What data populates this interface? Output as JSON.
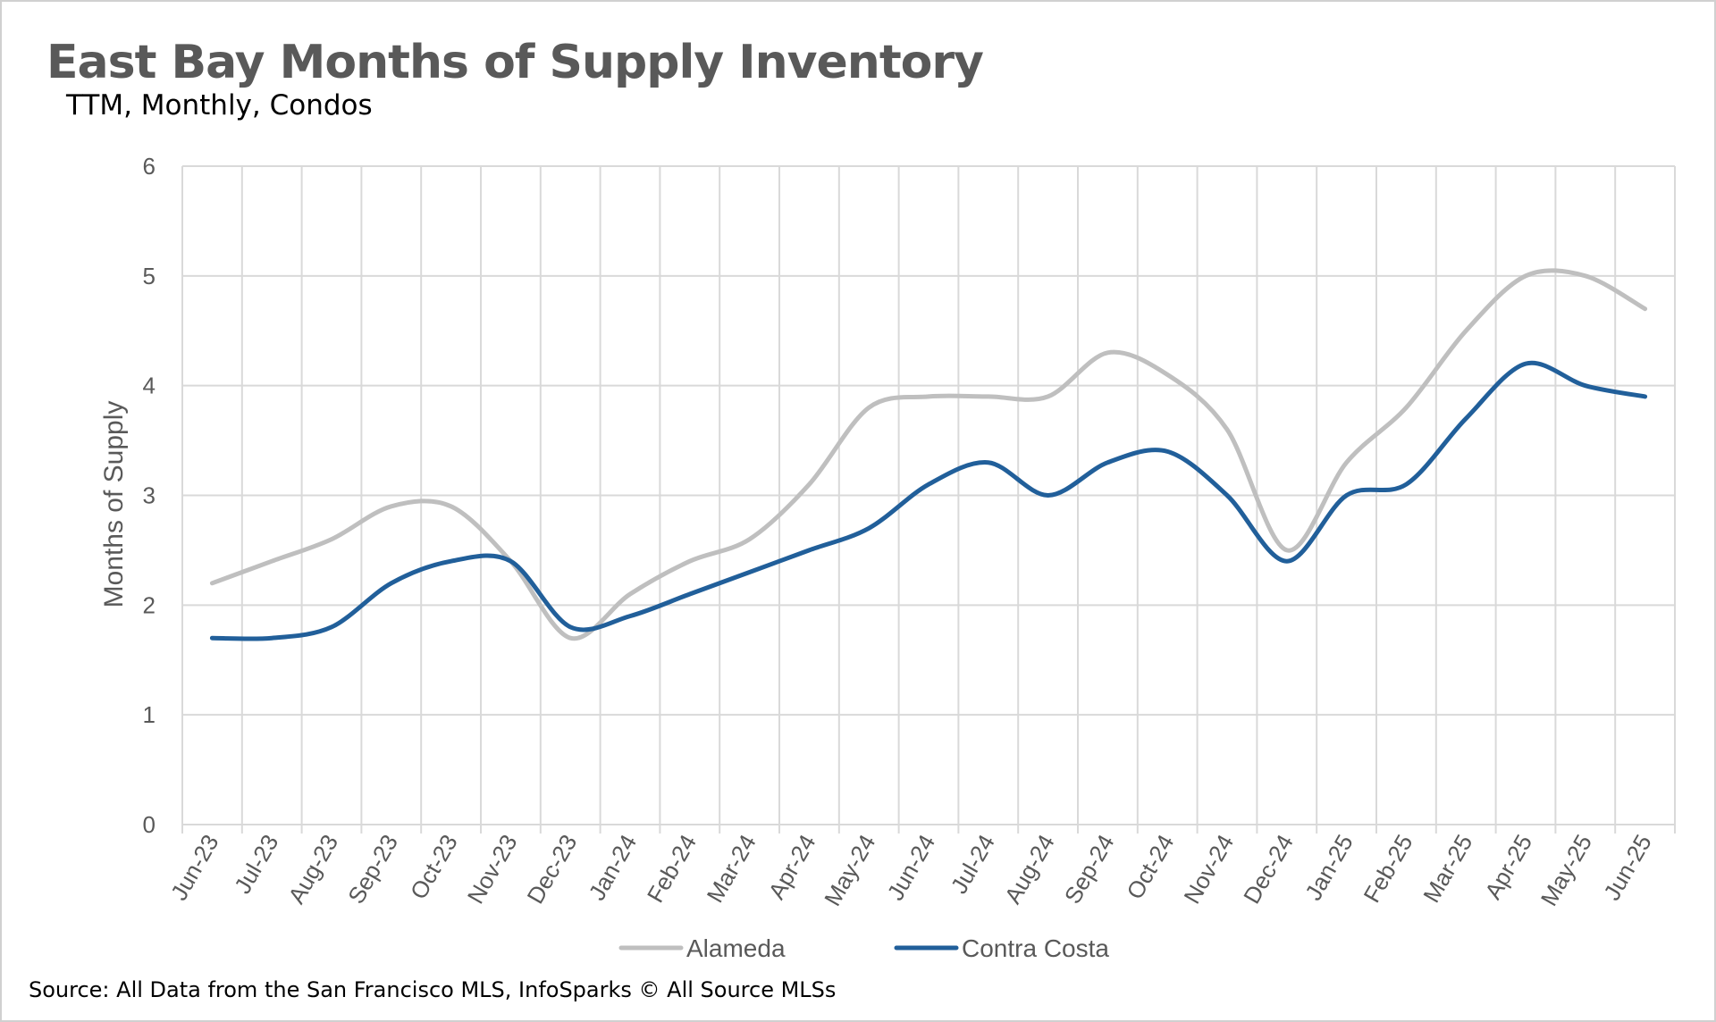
{
  "title": "East Bay Months of Supply Inventory",
  "subtitle": "TTM, Monthly, Condos",
  "source": "Source: All Data from the San Francisco MLS, InfoSparks © All Source MLSs",
  "chart_data": {
    "type": "line",
    "title": "East Bay Months of Supply Inventory",
    "subtitle": "TTM, Monthly, Condos",
    "xlabel": "",
    "ylabel": "Months of Supply",
    "ylim": [
      0,
      6
    ],
    "yticks": [
      0,
      1,
      2,
      3,
      4,
      5,
      6
    ],
    "grid": true,
    "legend": "bottom",
    "categories": [
      "Jun-23",
      "Jul-23",
      "Aug-23",
      "Sep-23",
      "Oct-23",
      "Nov-23",
      "Dec-23",
      "Jan-24",
      "Feb-24",
      "Mar-24",
      "Apr-24",
      "May-24",
      "Jun-24",
      "Jul-24",
      "Aug-24",
      "Sep-24",
      "Oct-24",
      "Nov-24",
      "Dec-24",
      "Jan-25",
      "Feb-25",
      "Mar-25",
      "Apr-25",
      "May-25",
      "Jun-25"
    ],
    "series": [
      {
        "name": "Alameda",
        "color": "#bfbfbf",
        "values": [
          2.2,
          2.4,
          2.6,
          2.9,
          2.9,
          2.4,
          1.7,
          2.1,
          2.4,
          2.6,
          3.1,
          3.8,
          3.9,
          3.9,
          3.9,
          4.3,
          4.1,
          3.6,
          2.5,
          3.3,
          3.8,
          4.5,
          5.0,
          5.0,
          4.7
        ]
      },
      {
        "name": "Contra Costa",
        "color": "#215f9a",
        "values": [
          1.7,
          1.7,
          1.8,
          2.2,
          2.4,
          2.4,
          1.8,
          1.9,
          2.1,
          2.3,
          2.5,
          2.7,
          3.1,
          3.3,
          3.0,
          3.3,
          3.4,
          3.0,
          2.4,
          3.0,
          3.1,
          3.7,
          4.2,
          4.0,
          3.9
        ]
      }
    ]
  }
}
